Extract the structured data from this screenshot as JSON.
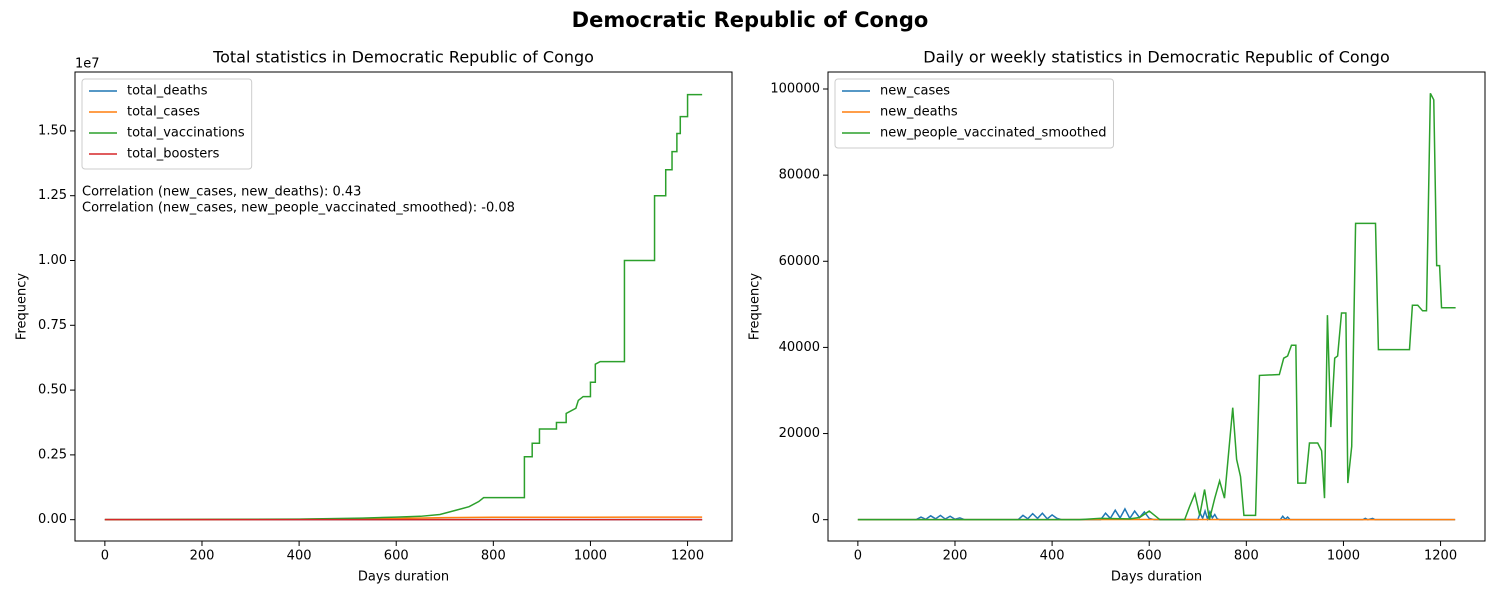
{
  "title": "Democratic Republic of Congo",
  "chart_data": [
    {
      "type": "line",
      "title": "Total statistics in Democratic Republic of Congo",
      "xlabel": "Days duration",
      "ylabel": "Frequency",
      "y_offset_label": "1e7",
      "annotations": [
        "Correlation (new_cases, new_deaths): 0.43",
        "Correlation (new_cases, new_people_vaccinated_smoothed): -0.08"
      ],
      "legend": "upper left",
      "xlim": [
        -61.5,
        1291.5
      ],
      "xticks": [
        0,
        200,
        400,
        600,
        800,
        1000,
        1200
      ],
      "ylim": [
        -822500,
        17272500
      ],
      "yticks": [
        {
          "value": 0,
          "label": "0.00"
        },
        {
          "value": 2500000,
          "label": "0.25"
        },
        {
          "value": 5000000,
          "label": "0.50"
        },
        {
          "value": 7500000,
          "label": "0.75"
        },
        {
          "value": 10000000,
          "label": "1.00"
        },
        {
          "value": 12500000,
          "label": "1.25"
        },
        {
          "value": 15000000,
          "label": "1.50"
        }
      ],
      "series": [
        {
          "name": "total_deaths",
          "color": "#1f77b4",
          "x": [
            0,
            100,
            200,
            300,
            400,
            500,
            600,
            700,
            800,
            900,
            1000,
            1100,
            1230
          ],
          "values": [
            0,
            50,
            200,
            350,
            700,
            1000,
            1200,
            1300,
            1370,
            1400,
            1420,
            1440,
            1460
          ]
        },
        {
          "name": "total_cases",
          "color": "#ff7f0e",
          "x": [
            0,
            100,
            200,
            300,
            400,
            500,
            600,
            700,
            800,
            900,
            1000,
            1100,
            1230
          ],
          "values": [
            0,
            1000,
            6000,
            10000,
            17000,
            30000,
            45000,
            80000,
            92000,
            95000,
            96000,
            97000,
            99000
          ]
        },
        {
          "name": "total_vaccinations",
          "color": "#2ca02c",
          "x": [
            0,
            400,
            530,
            600,
            650,
            690,
            720,
            750,
            770,
            780,
            864,
            864,
            880,
            880,
            895,
            895,
            930,
            930,
            950,
            950,
            970,
            975,
            985,
            1000,
            1000,
            1010,
            1010,
            1020,
            1070,
            1070,
            1132,
            1132,
            1155,
            1155,
            1168,
            1168,
            1178,
            1178,
            1185,
            1185,
            1200,
            1200,
            1230
          ],
          "values": [
            0,
            20000,
            60000,
            100000,
            130000,
            200000,
            350000,
            500000,
            700000,
            850000,
            850000,
            2430000,
            2430000,
            2950000,
            2950000,
            3500000,
            3500000,
            3750000,
            3750000,
            4100000,
            4300000,
            4600000,
            4750000,
            4750000,
            5300000,
            5300000,
            6000000,
            6100000,
            6100000,
            10000000,
            10000000,
            12500000,
            12500000,
            13500000,
            13500000,
            14200000,
            14200000,
            14900000,
            14900000,
            15550000,
            15550000,
            16400000,
            16400000
          ]
        },
        {
          "name": "total_boosters",
          "color": "#d62728",
          "x": [
            0,
            1230
          ],
          "values": [
            0,
            0
          ]
        }
      ]
    },
    {
      "type": "line",
      "title": "Daily or weekly statistics in Democratic Republic of Congo",
      "xlabel": "Days duration",
      "ylabel": "Frequency",
      "legend": "upper left",
      "xlim": [
        -61.5,
        1291.5
      ],
      "xticks": [
        0,
        200,
        400,
        600,
        800,
        1000,
        1200
      ],
      "ylim": [
        -4950,
        103950
      ],
      "yticks": [
        0,
        20000,
        40000,
        60000,
        80000,
        100000
      ],
      "series": [
        {
          "name": "new_cases",
          "color": "#1f77b4",
          "x": [
            0,
            120,
            130,
            140,
            150,
            160,
            170,
            180,
            190,
            200,
            210,
            220,
            330,
            340,
            350,
            360,
            370,
            380,
            390,
            400,
            410,
            420,
            500,
            510,
            520,
            530,
            540,
            550,
            560,
            570,
            580,
            590,
            600,
            610,
            700,
            705,
            710,
            715,
            720,
            725,
            730,
            735,
            740,
            745,
            870,
            875,
            880,
            885,
            890,
            1040,
            1045,
            1050,
            1060,
            1065,
            1230
          ],
          "values": [
            0,
            0,
            600,
            100,
            900,
            200,
            1000,
            150,
            800,
            100,
            400,
            0,
            0,
            1000,
            200,
            1400,
            300,
            1500,
            200,
            1100,
            300,
            0,
            0,
            1500,
            300,
            2200,
            400,
            2500,
            300,
            2000,
            500,
            1800,
            300,
            0,
            0,
            1500,
            300,
            2000,
            200,
            1800,
            400,
            1200,
            200,
            0,
            0,
            800,
            100,
            600,
            0,
            0,
            300,
            0,
            300,
            0,
            0
          ]
        },
        {
          "name": "new_deaths",
          "color": "#ff7f0e",
          "x": [
            0,
            200,
            400,
            550,
            700,
            900,
            1230
          ],
          "values": [
            0,
            10,
            20,
            50,
            30,
            5,
            0
          ]
        },
        {
          "name": "new_people_vaccinated_smoothed",
          "color": "#2ca02c",
          "x": [
            0,
            300,
            457,
            498,
            560,
            580,
            600,
            622,
            673,
            683,
            694,
            704,
            714,
            724,
            735,
            745,
            755,
            772,
            780,
            788,
            795,
            819,
            827,
            868,
            877,
            885,
            893,
            902,
            906,
            922,
            930,
            947,
            955,
            961,
            967,
            974,
            982,
            988,
            996,
            1005,
            1009,
            1017,
            1025,
            1066,
            1072,
            1136,
            1142,
            1153,
            1163,
            1171,
            1179,
            1186,
            1192,
            1198,
            1202,
            1231
          ],
          "values": [
            0,
            0,
            0,
            300,
            200,
            500,
            2000,
            0,
            0,
            3000,
            6000,
            1000,
            7000,
            0,
            5000,
            9000,
            5000,
            26000,
            14000,
            10000,
            1000,
            1000,
            33500,
            33700,
            37500,
            38000,
            40500,
            40500,
            8500,
            8500,
            17800,
            17800,
            16000,
            5000,
            47500,
            21500,
            37500,
            38000,
            48000,
            48000,
            8500,
            17000,
            68800,
            68800,
            39500,
            39500,
            49800,
            49800,
            48500,
            48500,
            99000,
            97500,
            59000,
            59000,
            49200,
            49200
          ]
        }
      ]
    }
  ]
}
